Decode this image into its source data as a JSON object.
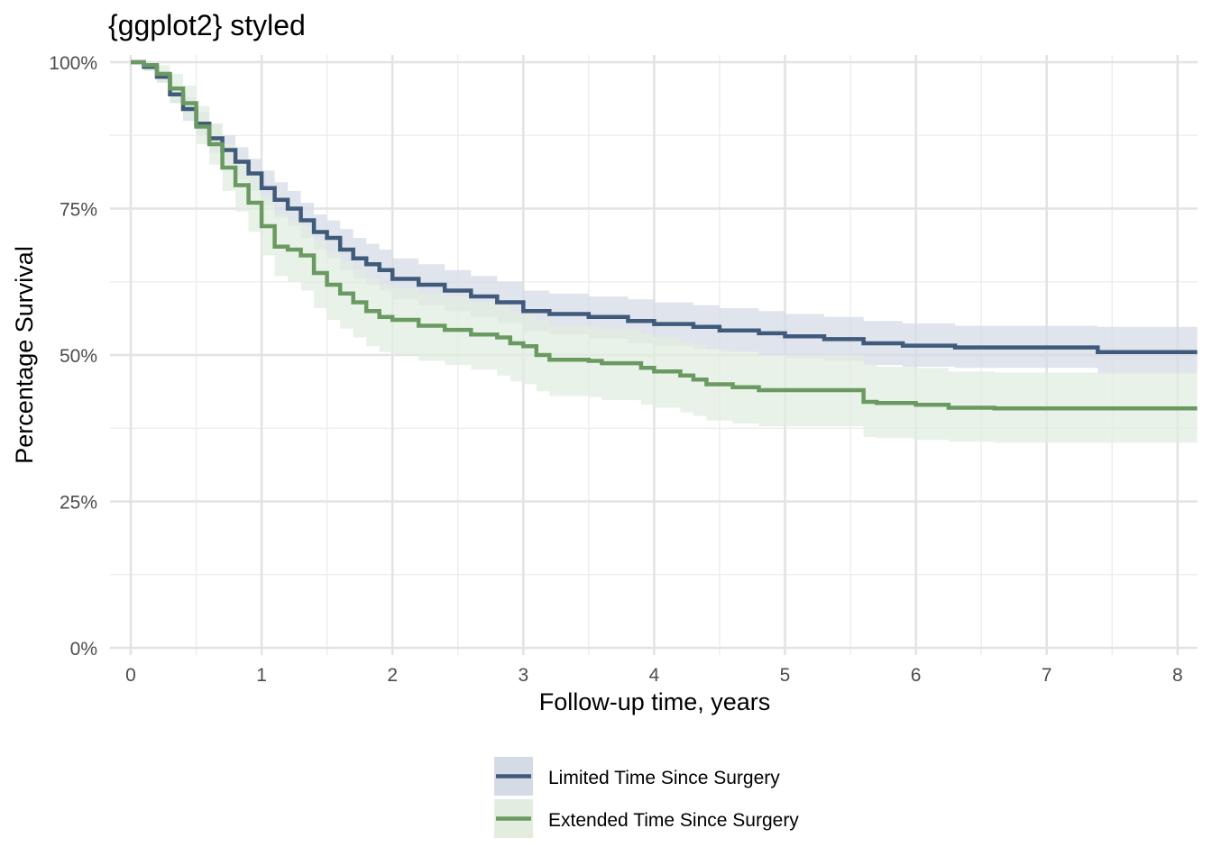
{
  "chart_data": {
    "type": "line",
    "subtype": "kaplan-meier-step",
    "title": "{ggplot2} styled",
    "xlabel": "Follow-up time, years",
    "ylabel": "Percentage Survival",
    "xlim": [
      0,
      8.15
    ],
    "ylim": [
      0,
      100
    ],
    "x_ticks": [
      0,
      1,
      2,
      3,
      4,
      5,
      6,
      7,
      8
    ],
    "x_tick_labels": [
      "0",
      "1",
      "2",
      "3",
      "4",
      "5",
      "6",
      "7",
      "8"
    ],
    "y_ticks": [
      0,
      25,
      50,
      75,
      100
    ],
    "y_tick_labels": [
      "0%",
      "25%",
      "50%",
      "75%",
      "100%"
    ],
    "grid": true,
    "legend_position": "bottom",
    "series": [
      {
        "name": "Limited Time Since Surgery",
        "color": "#3f5a7a",
        "fill": "#d5dbe5",
        "x": [
          0,
          0.1,
          0.2,
          0.3,
          0.4,
          0.5,
          0.6,
          0.7,
          0.8,
          0.9,
          1.0,
          1.1,
          1.2,
          1.3,
          1.4,
          1.5,
          1.6,
          1.7,
          1.8,
          1.9,
          2.0,
          2.2,
          2.4,
          2.6,
          2.8,
          3.0,
          3.2,
          3.5,
          3.8,
          4.0,
          4.3,
          4.5,
          4.8,
          5.0,
          5.3,
          5.6,
          5.9,
          6.3,
          7.0,
          7.39,
          8.15
        ],
        "y": [
          100,
          99.2,
          97.5,
          94.5,
          92.0,
          89.5,
          87.0,
          85.0,
          83.0,
          81.0,
          78.5,
          76.5,
          75.0,
          73.0,
          71.0,
          70.0,
          68.0,
          66.5,
          65.5,
          64.5,
          63.0,
          62.0,
          61.0,
          60.0,
          59.0,
          57.5,
          57.0,
          56.5,
          55.8,
          55.3,
          54.8,
          54.2,
          53.7,
          53.2,
          52.7,
          52.0,
          51.6,
          51.3,
          51.3,
          50.5,
          50.5
        ],
        "lower": [
          100,
          98.5,
          96.5,
          93.0,
          90.0,
          87.5,
          84.5,
          82.5,
          80.0,
          78.0,
          75.5,
          73.5,
          72.0,
          70.0,
          68.0,
          66.5,
          64.5,
          63.0,
          62.0,
          61.0,
          59.5,
          58.5,
          57.5,
          56.5,
          55.5,
          54.0,
          53.5,
          52.8,
          52.0,
          51.5,
          51.0,
          50.5,
          50.0,
          49.5,
          49.0,
          48.3,
          48.0,
          47.8,
          47.8,
          46.8,
          46.8
        ],
        "upper": [
          100,
          100,
          98.5,
          96.0,
          94.0,
          91.5,
          89.5,
          87.5,
          85.5,
          83.5,
          81.5,
          79.5,
          78.0,
          76.0,
          74.0,
          73.0,
          71.5,
          70.0,
          69.0,
          68.0,
          66.5,
          65.5,
          64.5,
          63.5,
          62.5,
          61.0,
          60.5,
          60.0,
          59.5,
          59.0,
          58.5,
          58.0,
          57.5,
          57.0,
          56.5,
          55.8,
          55.4,
          55.0,
          55.0,
          54.8,
          54.8
        ]
      },
      {
        "name": "Extended Time Since Surgery",
        "color": "#6a9a62",
        "fill": "#e2ede0",
        "x": [
          0,
          0.1,
          0.2,
          0.3,
          0.4,
          0.5,
          0.6,
          0.7,
          0.8,
          0.9,
          1.0,
          1.1,
          1.2,
          1.3,
          1.4,
          1.5,
          1.6,
          1.7,
          1.8,
          1.9,
          2.0,
          2.2,
          2.4,
          2.6,
          2.8,
          2.9,
          3.0,
          3.1,
          3.2,
          3.5,
          3.6,
          3.9,
          4.0,
          4.2,
          4.3,
          4.4,
          4.6,
          4.8,
          5.5,
          5.6,
          5.7,
          6.0,
          6.25,
          6.6,
          7.0,
          8.15
        ],
        "y": [
          100,
          99.5,
          98.0,
          95.5,
          93.0,
          89.0,
          86.0,
          82.0,
          79.0,
          76.0,
          72.0,
          68.5,
          68.0,
          67.0,
          64.0,
          62.0,
          60.5,
          59.0,
          57.5,
          56.5,
          56.0,
          55.0,
          54.3,
          53.5,
          53.0,
          52.0,
          51.5,
          50.0,
          49.2,
          49.0,
          48.6,
          47.8,
          47.2,
          46.5,
          45.8,
          45.0,
          44.5,
          44.0,
          44.0,
          42.0,
          41.8,
          41.5,
          41.0,
          40.9,
          40.9,
          40.9
        ],
        "lower": [
          100,
          98.5,
          96.5,
          93.5,
          90.5,
          86.0,
          82.5,
          78.0,
          74.5,
          71.0,
          67.0,
          63.5,
          62.5,
          61.0,
          58.0,
          56.0,
          54.5,
          53.0,
          51.5,
          50.5,
          50.0,
          49.0,
          48.3,
          47.5,
          46.5,
          45.5,
          45.0,
          43.8,
          43.0,
          42.8,
          42.3,
          41.5,
          41.0,
          40.2,
          39.6,
          38.8,
          38.3,
          37.8,
          37.8,
          36.0,
          35.8,
          35.5,
          35.2,
          35.0,
          35.0,
          35.0
        ],
        "upper": [
          100,
          100,
          99.5,
          98.0,
          96.0,
          92.5,
          89.5,
          86.0,
          83.5,
          81.0,
          77.0,
          74.0,
          73.0,
          72.0,
          69.5,
          67.5,
          66.0,
          64.5,
          63.0,
          62.0,
          61.5,
          60.5,
          60.0,
          59.0,
          58.5,
          57.5,
          57.0,
          56.0,
          55.0,
          54.8,
          54.4,
          53.5,
          53.0,
          52.3,
          51.8,
          51.0,
          50.5,
          50.0,
          50.0,
          48.5,
          48.0,
          47.8,
          47.2,
          47.0,
          47.0,
          47.0
        ]
      }
    ]
  }
}
